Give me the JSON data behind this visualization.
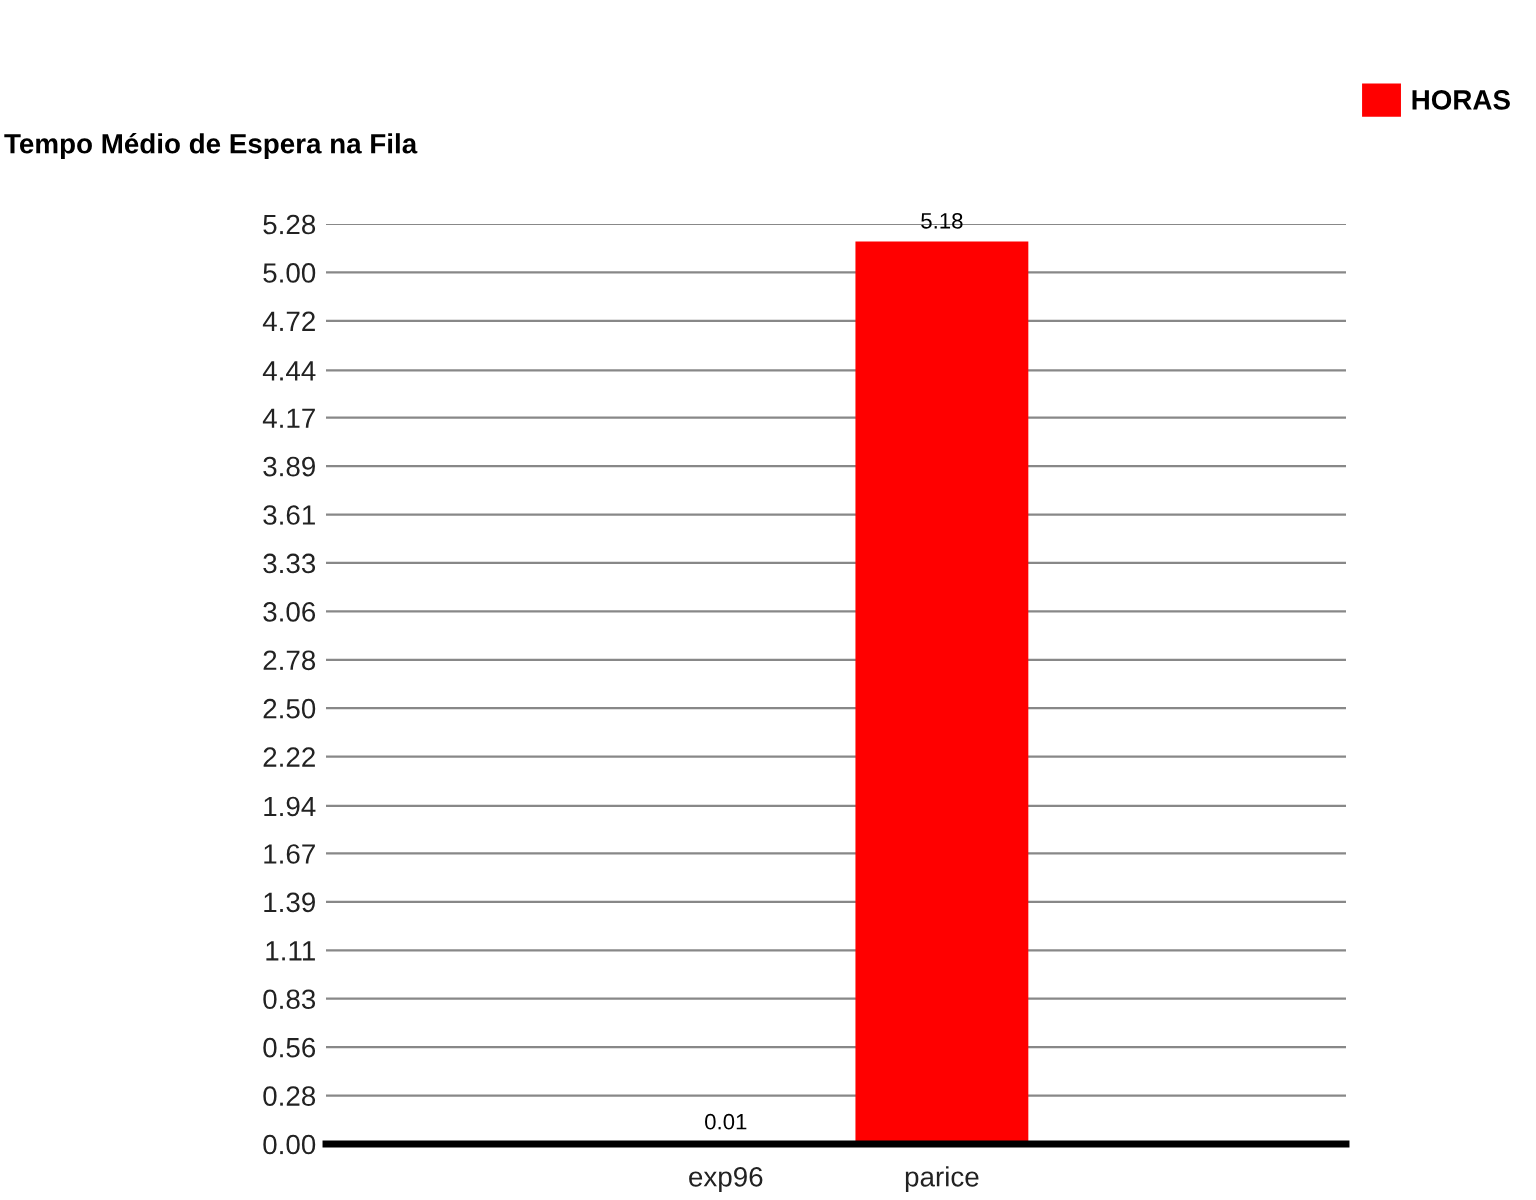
{
  "chart_data": {
    "type": "bar",
    "title": "Tempo Médio de Espera na Fila",
    "categories": [
      "exp96",
      "parice"
    ],
    "series": [
      {
        "name": "HORAS",
        "color": "#ff0000",
        "values": [
          0.01,
          5.18
        ]
      }
    ],
    "data_labels": true,
    "ylim": [
      0,
      5.28
    ],
    "yticks": [
      {
        "value": 0,
        "label": "0.00"
      },
      {
        "value": 0.2779,
        "label": "0.28"
      },
      {
        "value": 0.5558,
        "label": "0.56"
      },
      {
        "value": 0.8337,
        "label": "0.83"
      },
      {
        "value": 1.1116,
        "label": "1.11"
      },
      {
        "value": 1.3895,
        "label": "1.39"
      },
      {
        "value": 1.6674,
        "label": "1.67"
      },
      {
        "value": 1.94,
        "label": "1.94"
      },
      {
        "value": 2.2232,
        "label": "2.22"
      },
      {
        "value": 2.5011,
        "label": "2.50"
      },
      {
        "value": 2.7789,
        "label": "2.78"
      },
      {
        "value": 3.0568,
        "label": "3.06"
      },
      {
        "value": 3.3347,
        "label": "3.33"
      },
      {
        "value": 3.6126,
        "label": "3.61"
      },
      {
        "value": 3.8905,
        "label": "3.89"
      },
      {
        "value": 4.1684,
        "label": "4.17"
      },
      {
        "value": 4.44,
        "label": "4.44"
      },
      {
        "value": 4.7242,
        "label": "4.72"
      },
      {
        "value": 5.0021,
        "label": "5.00"
      },
      {
        "value": 5.28,
        "label": "5.28"
      }
    ],
    "grid": "y",
    "legend": "top right"
  }
}
